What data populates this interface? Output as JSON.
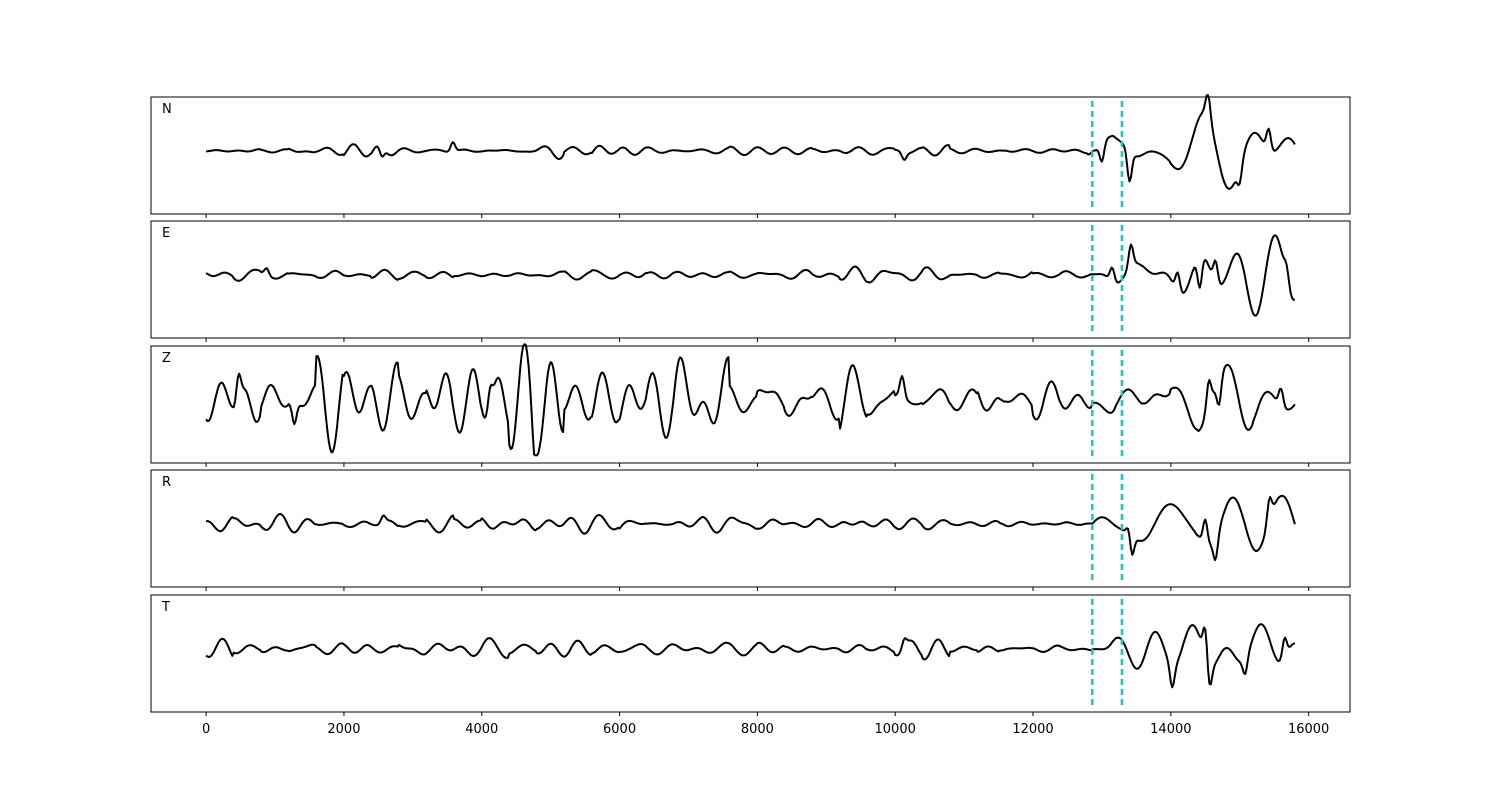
{
  "chart_data": {
    "type": "line",
    "xlim": [
      -800,
      16600
    ],
    "xticks": [
      0,
      2000,
      4000,
      6000,
      8000,
      10000,
      12000,
      14000,
      16000
    ],
    "xtick_labels": [
      "0",
      "2000",
      "4000",
      "6000",
      "8000",
      "10000",
      "12000",
      "14000",
      "16000"
    ],
    "n_samples": 15800,
    "grid": false,
    "pick_color": "#1cc7c0",
    "trace_color": "#000000",
    "pick_lines": [
      12860,
      13290
    ],
    "panels": [
      {
        "label": "N",
        "noise_amp": 0.12,
        "signal_amp": 0.45,
        "peaks": [
          [
            2550,
            -0.17
          ],
          [
            3580,
            0.17
          ],
          [
            10130,
            -0.13
          ],
          [
            13000,
            -0.32
          ],
          [
            13400,
            -0.52
          ],
          [
            14540,
            0.42
          ],
          [
            15000,
            -0.3
          ],
          [
            15420,
            0.37
          ]
        ]
      },
      {
        "label": "E",
        "noise_amp": 0.12,
        "signal_amp": 0.5,
        "peaks": [
          [
            880,
            0.12
          ],
          [
            13150,
            0.25
          ],
          [
            13420,
            0.38
          ],
          [
            14100,
            0.33
          ],
          [
            14420,
            -0.55
          ],
          [
            14650,
            0.37
          ],
          [
            15680,
            0.25
          ]
        ]
      },
      {
        "label": "Z",
        "noise_amp": 0.55,
        "signal_amp": 0.45,
        "peaks": [
          [
            470,
            0.45
          ],
          [
            1280,
            -0.38
          ],
          [
            4120,
            0.37
          ],
          [
            4760,
            -0.4
          ],
          [
            10100,
            0.35
          ],
          [
            14550,
            0.45
          ],
          [
            14700,
            -0.45
          ],
          [
            15600,
            0.32
          ]
        ]
      },
      {
        "label": "R",
        "noise_amp": 0.12,
        "signal_amp": 0.45,
        "peaks": [
          [
            2570,
            0.12
          ],
          [
            13400,
            0.25
          ],
          [
            13430,
            -0.45
          ],
          [
            14500,
            0.42
          ],
          [
            14650,
            -0.38
          ],
          [
            15430,
            0.38
          ]
        ]
      },
      {
        "label": "T",
        "noise_amp": 0.12,
        "signal_amp": 0.45,
        "peaks": [
          [
            10130,
            0.15
          ],
          [
            14020,
            -0.38
          ],
          [
            14500,
            0.52
          ],
          [
            14560,
            -0.42
          ],
          [
            15080,
            -0.28
          ],
          [
            15650,
            0.35
          ]
        ]
      }
    ]
  }
}
